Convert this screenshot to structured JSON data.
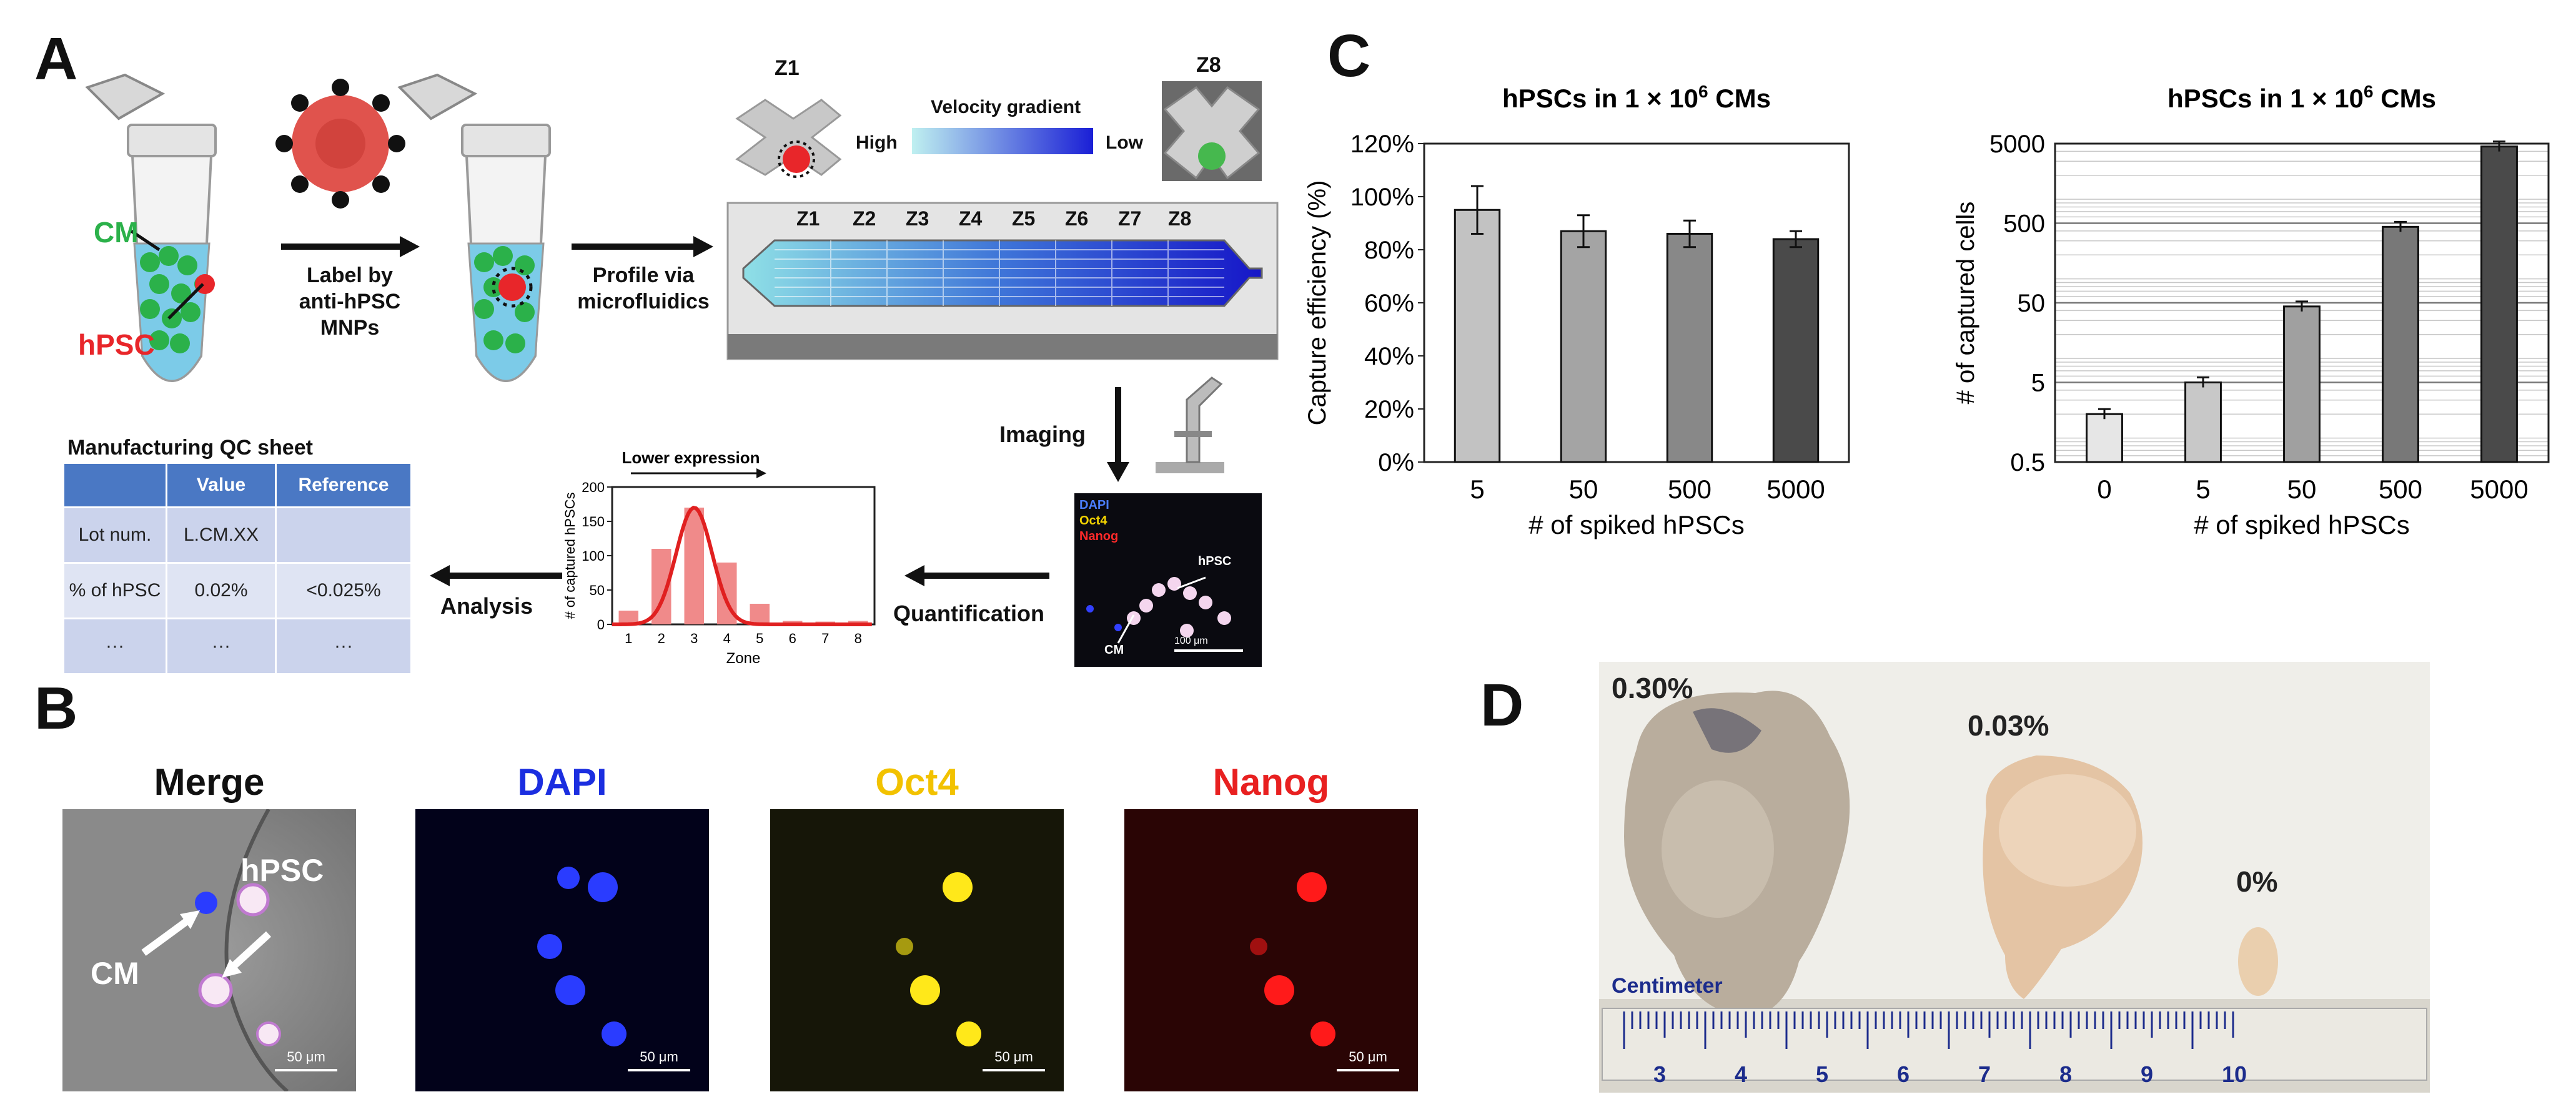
{
  "panels": {
    "a": "A",
    "b": "B",
    "c": "C",
    "d": "D"
  },
  "panel_a": {
    "cm_label": "CM",
    "hpsc_label": "hPSC",
    "label_step": [
      "Label by",
      "anti-hPSC",
      "MNPs"
    ],
    "profile_step": [
      "Profile via",
      "microfluidics"
    ],
    "z1_label": "Z1",
    "z8_label": "Z8",
    "velocity_gradient": "Velocity gradient",
    "high": "High",
    "low": "Low",
    "zones": [
      "Z1",
      "Z2",
      "Z3",
      "Z4",
      "Z5",
      "Z6",
      "Z7",
      "Z8"
    ],
    "imaging": "Imaging",
    "quantification": "Quantification",
    "analysis": "Analysis",
    "qc_title": "Manufacturing QC sheet",
    "qc_headers": [
      "",
      "Value",
      "Reference"
    ],
    "qc_rows": [
      [
        "Lot num.",
        "L.CM.XX",
        ""
      ],
      [
        "% of hPSC",
        "0.02%",
        "<0.025%"
      ],
      [
        "···",
        "···",
        "···"
      ]
    ],
    "fluor_labels": {
      "dapi": "DAPI",
      "oct4": "Oct4",
      "nanog": "Nanog",
      "hpsc": "hPSC",
      "cm": "CM",
      "scale": "100 μm"
    },
    "colors": {
      "cm": "#2bb14a",
      "hpsc": "#e8262a",
      "mnp": "#e0534d",
      "table_header": "#4a78c4",
      "gradient_start": "#bff0f0",
      "gradient_end": "#1a1fd6"
    }
  },
  "chart_data": [
    {
      "type": "bar",
      "title": "",
      "categories": [
        "1",
        "2",
        "3",
        "4",
        "5",
        "6",
        "7",
        "8"
      ],
      "values": [
        20,
        110,
        170,
        90,
        30,
        5,
        4,
        5
      ],
      "fit_curve": "gaussian",
      "xlabel": "Zone",
      "ylabel": "# of captured hPSCs",
      "ylim": [
        0,
        200
      ],
      "yticks": [
        "0",
        "50",
        "100",
        "150",
        "200"
      ],
      "annotation": "Lower expression"
    },
    {
      "type": "bar",
      "title_prefix": "hPSCs in 1 × 10",
      "title_exp": "6",
      "title_suffix": " CMs",
      "categories": [
        "5",
        "50",
        "500",
        "5000"
      ],
      "values": [
        95,
        87,
        86,
        84
      ],
      "errors": [
        9,
        6,
        5,
        3
      ],
      "xlabel": "# of spiked hPSCs",
      "ylabel": "Capture efficiency (%)",
      "ylim": [
        0,
        120
      ],
      "yticks": [
        "0%",
        "20%",
        "40%",
        "60%",
        "80%",
        "100%",
        "120%"
      ],
      "bar_colors": [
        "#c2c2c2",
        "#a4a4a4",
        "#888888",
        "#4a4a4a"
      ]
    },
    {
      "type": "bar",
      "scale": "log",
      "title_prefix": "hPSCs in 1 × 10",
      "title_exp": "6",
      "title_suffix": " CMs",
      "categories": [
        "0",
        "5",
        "50",
        "500",
        "5000"
      ],
      "values": [
        2,
        5,
        45,
        450,
        4600
      ],
      "xlabel": "# of spiked hPSCs",
      "ylabel": "# of captured cells",
      "ylim": [
        0.5,
        5000
      ],
      "yticks": [
        "0.5",
        "5",
        "50",
        "500",
        "5000"
      ],
      "bar_colors": [
        "#e6e6e6",
        "#c8c8c8",
        "#a0a0a0",
        "#787878",
        "#4a4a4a"
      ]
    }
  ],
  "panel_b": {
    "titles": [
      "Merge",
      "DAPI",
      "Oct4",
      "Nanog"
    ],
    "title_colors": [
      "#111111",
      "#1b2ee0",
      "#f2c200",
      "#e82020"
    ],
    "merge_hpsc": "hPSC",
    "merge_cm": "CM",
    "scale_label": "50 μm"
  },
  "panel_d": {
    "labels": [
      "0.30%",
      "0.03%",
      "0%"
    ],
    "ruler_label": "Centimeter",
    "ruler_numbers": [
      "3",
      "4",
      "5",
      "6",
      "7",
      "8",
      "9",
      "10"
    ]
  }
}
